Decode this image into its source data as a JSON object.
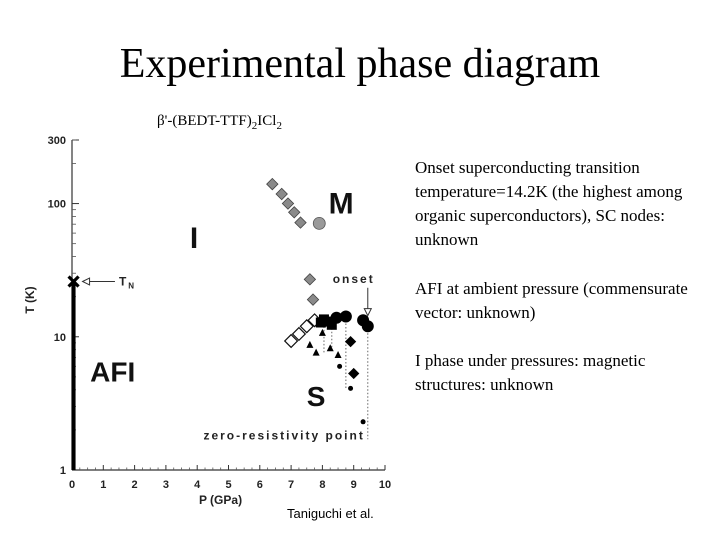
{
  "slide": {
    "title": "Experimental phase diagram",
    "compound": {
      "prefix": "β'-(BEDT-TTF)",
      "sub1": "2",
      "mid": "ICl",
      "sub2": "2"
    },
    "notes": [
      "Onset superconducting transition temperature=14.2K (the highest among organic superconductors), SC nodes: unknown",
      "AFI at ambient pressure (commensurate vector: unknown)",
      "I phase under pressures: magnetic structures: unknown"
    ],
    "credit": "Taniguchi et al."
  },
  "chart_data": {
    "type": "scatter",
    "xlabel": "P (GPa)",
    "ylabel": "T (K)",
    "xlim": [
      0,
      10
    ],
    "ylim": [
      1,
      300
    ],
    "yscale": "log",
    "x_ticks": [
      0,
      1,
      2,
      3,
      4,
      5,
      6,
      7,
      8,
      9,
      10
    ],
    "y_ticks": [
      {
        "value": 1,
        "label": "1"
      },
      {
        "value": 10,
        "label": "10"
      },
      {
        "value": 100,
        "label": "100"
      },
      {
        "value": 300,
        "label": "300"
      }
    ],
    "regions": [
      {
        "label": "M",
        "x": 8.6,
        "y": 100
      },
      {
        "label": "I",
        "x": 3.9,
        "y": 55
      },
      {
        "label": "AFI",
        "x": 1.3,
        "y": 5.5
      },
      {
        "label": "S",
        "x": 7.8,
        "y": 3.6
      }
    ],
    "annotations": [
      {
        "text": "T",
        "sub": "N",
        "x": 1.5,
        "y": 26
      },
      {
        "text": "onset",
        "x": 9.0,
        "y": 25
      },
      {
        "text": "zero-resistivity point",
        "x": 4.2,
        "y": 1.7
      }
    ],
    "tn_marker": {
      "x": 0.05,
      "y": 26
    },
    "afi_boundary": {
      "x": 0.05,
      "y_from": 1,
      "y_to": 26
    },
    "series": [
      {
        "name": "M-I boundary",
        "marker": "gray-diamond",
        "x": [
          6.4,
          6.7,
          6.9,
          7.1,
          7.3
        ],
        "y": [
          140,
          118,
          100,
          86,
          72
        ]
      },
      {
        "name": "M-I boundary 2",
        "marker": "gray-circle",
        "x": [
          7.9
        ],
        "y": [
          71
        ]
      },
      {
        "name": "I-S boundary",
        "marker": "gray-diamond",
        "x": [
          7.6,
          7.7
        ],
        "y": [
          27,
          19
        ]
      },
      {
        "name": "onset",
        "marker": "open-diamond",
        "x": [
          7.0,
          7.25,
          7.5,
          7.75
        ],
        "y": [
          9.3,
          10.5,
          12.0,
          13.3
        ]
      },
      {
        "name": "onset",
        "marker": "filled-square",
        "x": [
          7.95,
          8.05,
          8.15,
          8.3
        ],
        "y": [
          12.8,
          13.5,
          13.0,
          12.3
        ]
      },
      {
        "name": "onset",
        "marker": "filled-circle",
        "x": [
          8.45,
          8.75,
          9.3,
          9.45
        ],
        "y": [
          13.9,
          14.2,
          13.3,
          12.0
        ]
      },
      {
        "name": "zero-resistivity point",
        "marker": "filled-triangle",
        "x": [
          7.6,
          7.8,
          8.0,
          8.25,
          8.5
        ],
        "y": [
          8.7,
          7.6,
          10.7,
          8.2,
          7.3
        ]
      },
      {
        "name": "zero-resistivity point",
        "marker": "filled-diamond",
        "x": [
          8.9,
          9.0
        ],
        "y": [
          9.2,
          5.3
        ]
      },
      {
        "name": "zero-resistivity point",
        "marker": "small-dot",
        "x": [
          8.55,
          8.9,
          9.3
        ],
        "y": [
          6.0,
          4.1,
          2.3
        ]
      }
    ]
  }
}
